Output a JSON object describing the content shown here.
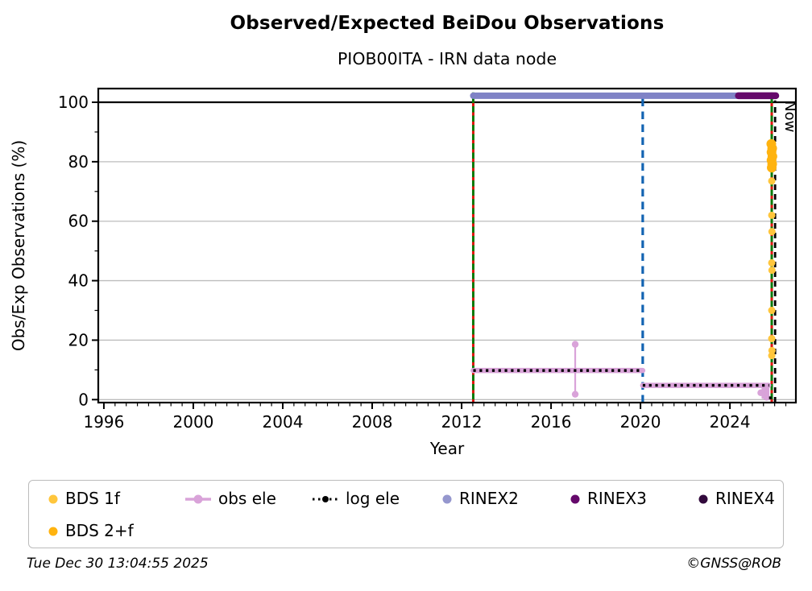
{
  "header": {
    "title": "Observed/Expected BeiDou Observations",
    "subtitle": "PIOB00ITA - IRN data node"
  },
  "footer": {
    "timestamp": "Tue Dec 30 13:04:55 2025",
    "credit": "©GNSS@ROB"
  },
  "legend": {
    "items": [
      {
        "label": "BDS 1f",
        "color": "#FFC63C",
        "marker": "dot",
        "row": 0,
        "col": 0
      },
      {
        "label": "obs ele",
        "color": "#D9A3D9",
        "marker": "line-dot",
        "row": 0,
        "col": 1
      },
      {
        "label": "log ele",
        "color": "#000000",
        "marker": "dotted-line-dot",
        "row": 0,
        "col": 2
      },
      {
        "label": "RINEX2",
        "color": "#9597CE",
        "marker": "dot",
        "row": 0,
        "col": 3
      },
      {
        "label": "RINEX3",
        "color": "#65096B",
        "marker": "dot",
        "row": 0,
        "col": 4
      },
      {
        "label": "RINEX4",
        "color": "#320A3C",
        "marker": "dot",
        "row": 0,
        "col": 5
      },
      {
        "label": "BDS 2+f",
        "color": "#FFB30F",
        "marker": "dot",
        "row": 1,
        "col": 0
      }
    ]
  },
  "chart_data": {
    "type": "line",
    "title": "Observed/Expected BeiDou Observations",
    "subtitle": "PIOB00ITA - IRN data node",
    "xlabel": "Year",
    "ylabel": "Obs/Exp Observations (%)",
    "xlim": [
      1995.75,
      2026.95
    ],
    "ylim": [
      -1,
      104.6
    ],
    "xticks": [
      1996,
      2000,
      2004,
      2008,
      2012,
      2016,
      2020,
      2024
    ],
    "yticks": [
      0,
      20,
      40,
      60,
      80,
      100
    ],
    "x_minor_step": 0.5,
    "y_minor_step": 10,
    "grid": "horizontal-gray",
    "grid_color": "#BDBDBD",
    "reference_line_y": 100,
    "now_label": "Now",
    "vlines": [
      {
        "name": "data-start",
        "x": 2012.52,
        "style": "green-red-dashed",
        "colors": [
          "#0A7A0A",
          "#E3150F"
        ]
      },
      {
        "name": "rinex-transition",
        "x": 2020.1,
        "style": "blue-dashed",
        "colors": [
          "#1263B2"
        ]
      },
      {
        "name": "data-end",
        "x": 2025.87,
        "style": "green-red-dashed",
        "colors": [
          "#0A7A0A",
          "#E3150F"
        ]
      },
      {
        "name": "now",
        "x": 2026.02,
        "style": "black-dashed",
        "colors": [
          "#000000"
        ],
        "label": "Now"
      }
    ],
    "series": [
      {
        "name": "RINEX2",
        "type": "thickline",
        "color": "#8083C6",
        "width": 8,
        "points": [
          [
            2012.52,
            102.2
          ],
          [
            2026.05,
            102.2
          ]
        ]
      },
      {
        "name": "RINEX3",
        "type": "thickline",
        "color": "#65096B",
        "width": 8.5,
        "points": [
          [
            2024.38,
            102.2
          ],
          [
            2026.05,
            102.2
          ]
        ]
      },
      {
        "name": "RINEX4",
        "type": "thickline",
        "color": "#320A3C",
        "width": 8,
        "points": []
      },
      {
        "name": "obs ele",
        "type": "thickline",
        "color": "#D9A3D9",
        "width": 6.5,
        "segments": [
          [
            [
              2012.52,
              9.8
            ],
            [
              2020.1,
              9.8
            ]
          ],
          [
            [
              2020.1,
              4.8
            ],
            [
              2025.73,
              4.8
            ]
          ]
        ],
        "errorbars": [
          {
            "x": 2017.08,
            "low": 1.8,
            "high": 18.6
          }
        ],
        "dropouts": [
          {
            "x": 2025.46,
            "from": 4.8,
            "to": 0.4,
            "width": 2.5
          },
          {
            "x": 2025.6,
            "from": 4.8,
            "to": 0.3,
            "width": 9
          }
        ],
        "dots": [
          [
            2017.08,
            18.6
          ],
          [
            2017.08,
            1.8
          ],
          [
            2025.38,
            2.3
          ],
          [
            2025.64,
            0.8
          ]
        ]
      },
      {
        "name": "log ele",
        "type": "dotted",
        "color": "#000000",
        "width": 3.4,
        "segments": [
          [
            [
              2012.52,
              9.8
            ],
            [
              2020.1,
              9.8
            ]
          ],
          [
            [
              2020.1,
              4.8
            ],
            [
              2025.75,
              4.8
            ]
          ],
          [
            [
              2025.75,
              0.6
            ],
            [
              2026.0,
              0.6
            ]
          ]
        ]
      },
      {
        "name": "BDS 2+f",
        "type": "scatter",
        "color": "#FFB30F",
        "radius": 6,
        "points": [
          [
            2025.85,
            86
          ],
          [
            2025.89,
            84.5
          ],
          [
            2025.86,
            83.2
          ],
          [
            2025.9,
            81.8
          ],
          [
            2025.86,
            80.5
          ],
          [
            2025.89,
            79.2
          ],
          [
            2025.87,
            78
          ]
        ]
      },
      {
        "name": "BDS 1f",
        "type": "scatter",
        "color": "#FFC63C",
        "radius": 4.5,
        "points": [
          [
            2025.87,
            73.5
          ],
          [
            2025.87,
            62
          ],
          [
            2025.88,
            56.5
          ],
          [
            2025.87,
            46
          ],
          [
            2025.88,
            43.5
          ],
          [
            2025.87,
            30
          ],
          [
            2025.87,
            20.5
          ],
          [
            2025.88,
            16.5
          ],
          [
            2025.87,
            14.8
          ]
        ]
      }
    ]
  }
}
